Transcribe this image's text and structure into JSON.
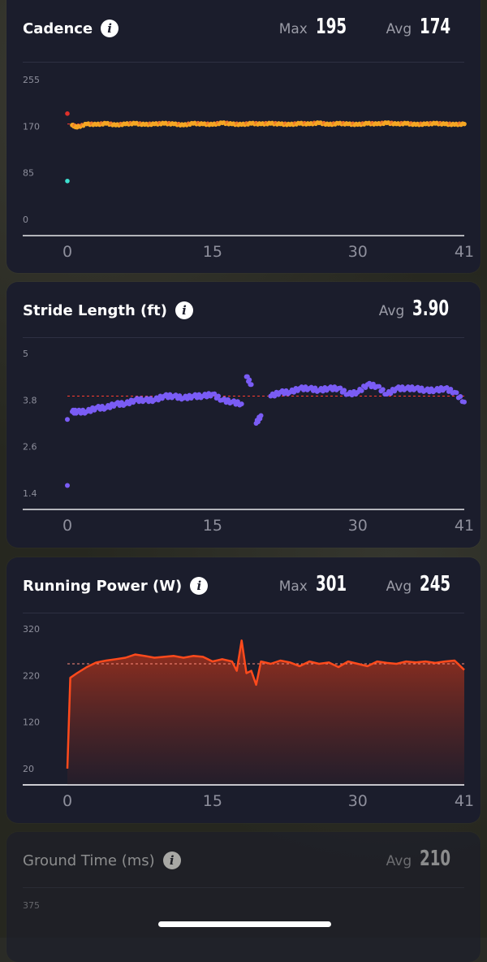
{
  "cards": [
    {
      "title": "Cadence",
      "info_icon": "info-icon",
      "max_label": "Max",
      "max_value": "195",
      "avg_label": "Avg",
      "avg_value": "174",
      "y_ticks": [
        "255",
        "170",
        "85",
        "0"
      ],
      "x_ticks": [
        "0",
        "15",
        "30",
        "41"
      ],
      "color": "#f5a623"
    },
    {
      "title": "Stride Length (ft)",
      "info_icon": "info-icon",
      "avg_label": "Avg",
      "avg_value": "3.90",
      "y_ticks": [
        "5",
        "3.8",
        "2.6",
        "1.4"
      ],
      "x_ticks": [
        "0",
        "15",
        "30",
        "41"
      ],
      "color": "#7a5cf5"
    },
    {
      "title": "Running Power (W)",
      "info_icon": "info-icon",
      "max_label": "Max",
      "max_value": "301",
      "avg_label": "Avg",
      "avg_value": "245",
      "y_ticks": [
        "320",
        "220",
        "120",
        "20"
      ],
      "x_ticks": [
        "0",
        "15",
        "30",
        "41"
      ],
      "color": "#ff4a1c"
    },
    {
      "title": "Ground Time (ms)",
      "info_icon": "info-icon",
      "avg_label": "Avg",
      "avg_value": "210",
      "y_ticks": [
        "375"
      ]
    }
  ],
  "chart_data": [
    {
      "type": "scatter",
      "title": "Cadence",
      "x_range": [
        0,
        41
      ],
      "y_range": [
        0,
        255
      ],
      "average": 174,
      "x": [
        0,
        0,
        0.5,
        1,
        2,
        3,
        4,
        5,
        6,
        7,
        8,
        9,
        10,
        11,
        12,
        13,
        14,
        15,
        16,
        17,
        18,
        19,
        20,
        21,
        22,
        23,
        24,
        25,
        26,
        27,
        28,
        29,
        30,
        31,
        32,
        33,
        34,
        35,
        36,
        37,
        38,
        39,
        40,
        41
      ],
      "y": [
        193,
        70,
        172,
        168,
        174,
        173,
        175,
        172,
        174,
        175,
        173,
        174,
        175,
        174,
        172,
        175,
        174,
        173,
        176,
        174,
        173,
        175,
        174,
        175,
        174,
        173,
        175,
        174,
        176,
        173,
        175,
        174,
        173,
        175,
        174,
        176,
        174,
        175,
        173,
        174,
        175,
        174,
        173,
        174
      ]
    },
    {
      "type": "scatter",
      "title": "Stride Length (ft)",
      "x_range": [
        0,
        41
      ],
      "y_range": [
        1.4,
        5
      ],
      "average": 3.9,
      "x": [
        0,
        0,
        0.5,
        1,
        2,
        3,
        4,
        5,
        6,
        7,
        8,
        9,
        10,
        11,
        12,
        13,
        14,
        15,
        16,
        17,
        18,
        18.5,
        19,
        19.5,
        20,
        21,
        22,
        23,
        24,
        25,
        26,
        27,
        28,
        29,
        30,
        31,
        32,
        33,
        34,
        35,
        36,
        37,
        38,
        39,
        40,
        41
      ],
      "y": [
        1.6,
        3.3,
        3.5,
        3.5,
        3.5,
        3.6,
        3.6,
        3.7,
        3.7,
        3.8,
        3.8,
        3.8,
        3.9,
        3.9,
        3.85,
        3.9,
        3.9,
        3.95,
        3.8,
        3.75,
        3.7,
        4.4,
        4.2,
        3.2,
        3.4,
        3.9,
        4.0,
        4.0,
        4.1,
        4.1,
        4.05,
        4.1,
        4.1,
        3.95,
        4.0,
        4.2,
        4.15,
        3.95,
        4.1,
        4.1,
        4.1,
        4.05,
        4.05,
        4.1,
        4.0,
        3.75
      ]
    },
    {
      "type": "area",
      "title": "Running Power (W)",
      "x_range": [
        0,
        41
      ],
      "y_range": [
        20,
        320
      ],
      "average": 245,
      "x": [
        0,
        0.3,
        1,
        2,
        3,
        4,
        5,
        6,
        7,
        8,
        9,
        10,
        11,
        12,
        13,
        14,
        15,
        16,
        17,
        17.5,
        18,
        18.5,
        19,
        19.5,
        20,
        21,
        22,
        23,
        24,
        25,
        26,
        27,
        28,
        29,
        30,
        31,
        32,
        33,
        34,
        35,
        36,
        37,
        38,
        39,
        40,
        41
      ],
      "y": [
        20,
        215,
        225,
        238,
        248,
        252,
        255,
        258,
        265,
        262,
        258,
        260,
        262,
        258,
        262,
        260,
        250,
        255,
        250,
        230,
        295,
        225,
        230,
        200,
        250,
        245,
        252,
        248,
        240,
        250,
        245,
        248,
        238,
        250,
        245,
        240,
        250,
        247,
        245,
        250,
        248,
        250,
        247,
        250,
        252,
        232
      ]
    }
  ]
}
